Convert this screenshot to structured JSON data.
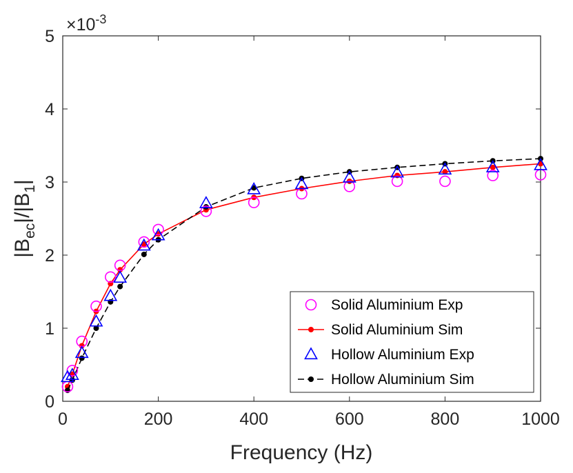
{
  "chart_data": {
    "type": "line",
    "xlabel": "Frequency (Hz)",
    "ylabel": {
      "pre": "|B",
      "sub1": "ec",
      "mid": "|/|B",
      "sub2": "1",
      "post": "|"
    },
    "xlim": [
      0,
      1000
    ],
    "ylim": [
      0,
      5
    ],
    "xticks": [
      "0",
      "200",
      "400",
      "600",
      "800",
      "1000"
    ],
    "yticks": [
      "0",
      "1",
      "2",
      "3",
      "4",
      "5"
    ],
    "y_exponent": {
      "prefix": "×10",
      "power": "-3"
    },
    "legend_position": "bottom-right",
    "series": [
      {
        "name": "Solid Aluminium Exp",
        "style": "circle",
        "color": "#ff00ff",
        "x": [
          10,
          20,
          40,
          70,
          100,
          120,
          170,
          200,
          300,
          400,
          500,
          600,
          700,
          800,
          900,
          1000
        ],
        "y": [
          0.2,
          0.42,
          0.82,
          1.3,
          1.7,
          1.86,
          2.18,
          2.35,
          2.6,
          2.72,
          2.84,
          2.94,
          3.01,
          3.01,
          3.09,
          3.1
        ]
      },
      {
        "name": "Solid Aluminium Sim",
        "style": "line-dot",
        "color": "#ff0000",
        "x": [
          10,
          20,
          40,
          70,
          100,
          120,
          170,
          200,
          300,
          400,
          500,
          600,
          700,
          800,
          900,
          1000
        ],
        "y": [
          0.2,
          0.37,
          0.76,
          1.23,
          1.61,
          1.8,
          2.15,
          2.29,
          2.62,
          2.79,
          2.91,
          3.01,
          3.09,
          3.14,
          3.2,
          3.25
        ]
      },
      {
        "name": "Hollow Aluminium Exp",
        "style": "triangle",
        "color": "#0000ff",
        "x": [
          10,
          20,
          40,
          70,
          100,
          120,
          170,
          200,
          300,
          400,
          500,
          600,
          700,
          800,
          900,
          1000
        ],
        "y": [
          0.33,
          0.36,
          0.66,
          1.09,
          1.44,
          1.69,
          2.13,
          2.27,
          2.71,
          2.9,
          2.97,
          3.06,
          3.13,
          3.17,
          3.2,
          3.23
        ]
      },
      {
        "name": "Hollow Aluminium Sim",
        "style": "dash-dot",
        "color": "#000000",
        "x": [
          10,
          20,
          40,
          70,
          100,
          120,
          170,
          200,
          300,
          400,
          500,
          600,
          700,
          800,
          900,
          1000
        ],
        "y": [
          0.15,
          0.29,
          0.59,
          1.0,
          1.36,
          1.57,
          2.01,
          2.21,
          2.66,
          2.92,
          3.05,
          3.14,
          3.2,
          3.25,
          3.29,
          3.32
        ]
      }
    ]
  }
}
